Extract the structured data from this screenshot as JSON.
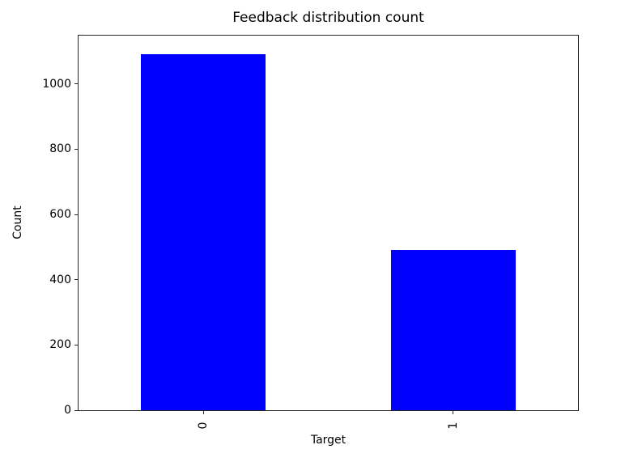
{
  "chart_data": {
    "type": "bar",
    "title": "Feedback distribution count",
    "xlabel": "Target",
    "ylabel": "Count",
    "categories": [
      "0",
      "1"
    ],
    "values": [
      1090,
      490
    ],
    "yticks": [
      0,
      200,
      400,
      600,
      800,
      1000
    ],
    "ylim": [
      0,
      1148
    ],
    "bar_color": "#0000ff",
    "background": "#ffffff",
    "grid": false,
    "legend": null,
    "xtick_rotation_deg": 90
  }
}
